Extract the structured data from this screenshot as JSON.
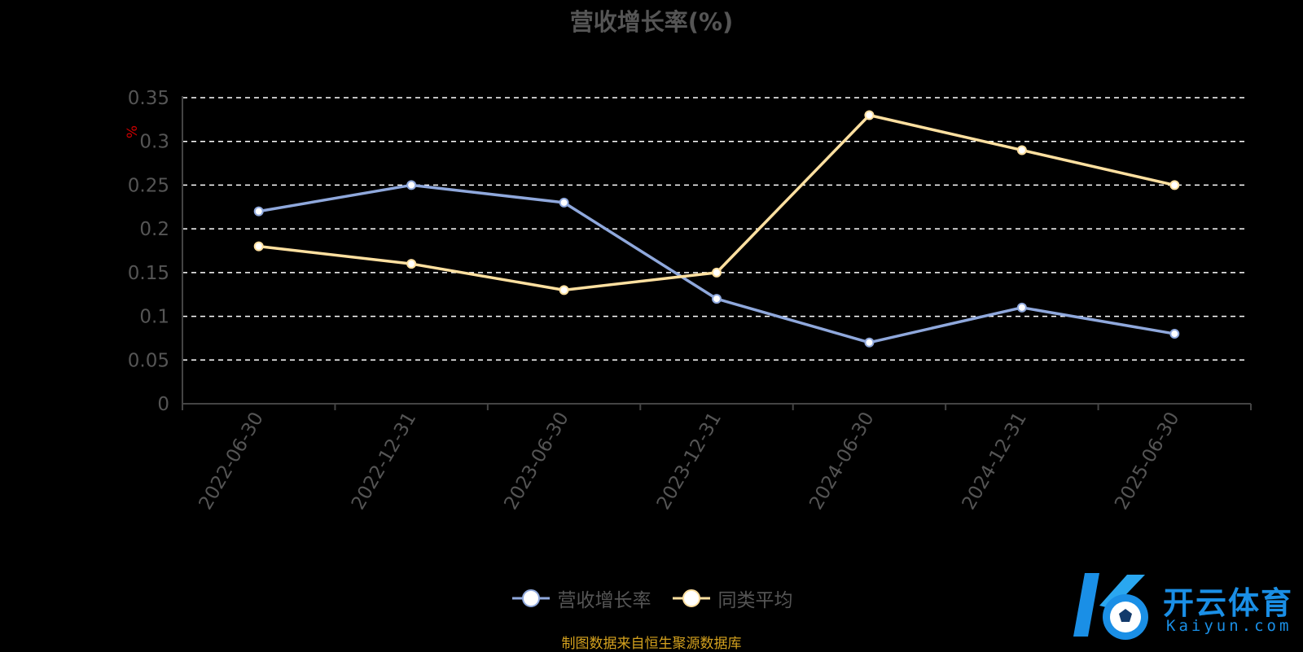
{
  "chart_data": {
    "type": "line",
    "title": "营收增长率(%)",
    "ylabel": "%",
    "categories": [
      "2022-06-30",
      "2022-12-31",
      "2023-06-30",
      "2023-12-31",
      "2024-06-30",
      "2024-12-31",
      "2025-06-30"
    ],
    "series": [
      {
        "name": "营收增长率",
        "color": "#8fa8dc",
        "values": [
          0.22,
          0.25,
          0.23,
          0.12,
          0.07,
          0.11,
          0.08
        ]
      },
      {
        "name": "同类平均",
        "color": "#ffe0a0",
        "values": [
          0.18,
          0.16,
          0.13,
          0.15,
          0.33,
          0.29,
          0.25
        ]
      }
    ],
    "yticks": [
      "0",
      "0.05",
      "0.1",
      "0.15",
      "0.2",
      "0.25",
      "0.3",
      "0.35"
    ],
    "ylim": [
      0,
      0.35
    ],
    "grid": true,
    "legend_position": "bottom"
  },
  "source_note": "制图数据来自恒生聚源数据库",
  "watermark": {
    "brand": "开云体育",
    "site": "Kaiyun.com"
  }
}
